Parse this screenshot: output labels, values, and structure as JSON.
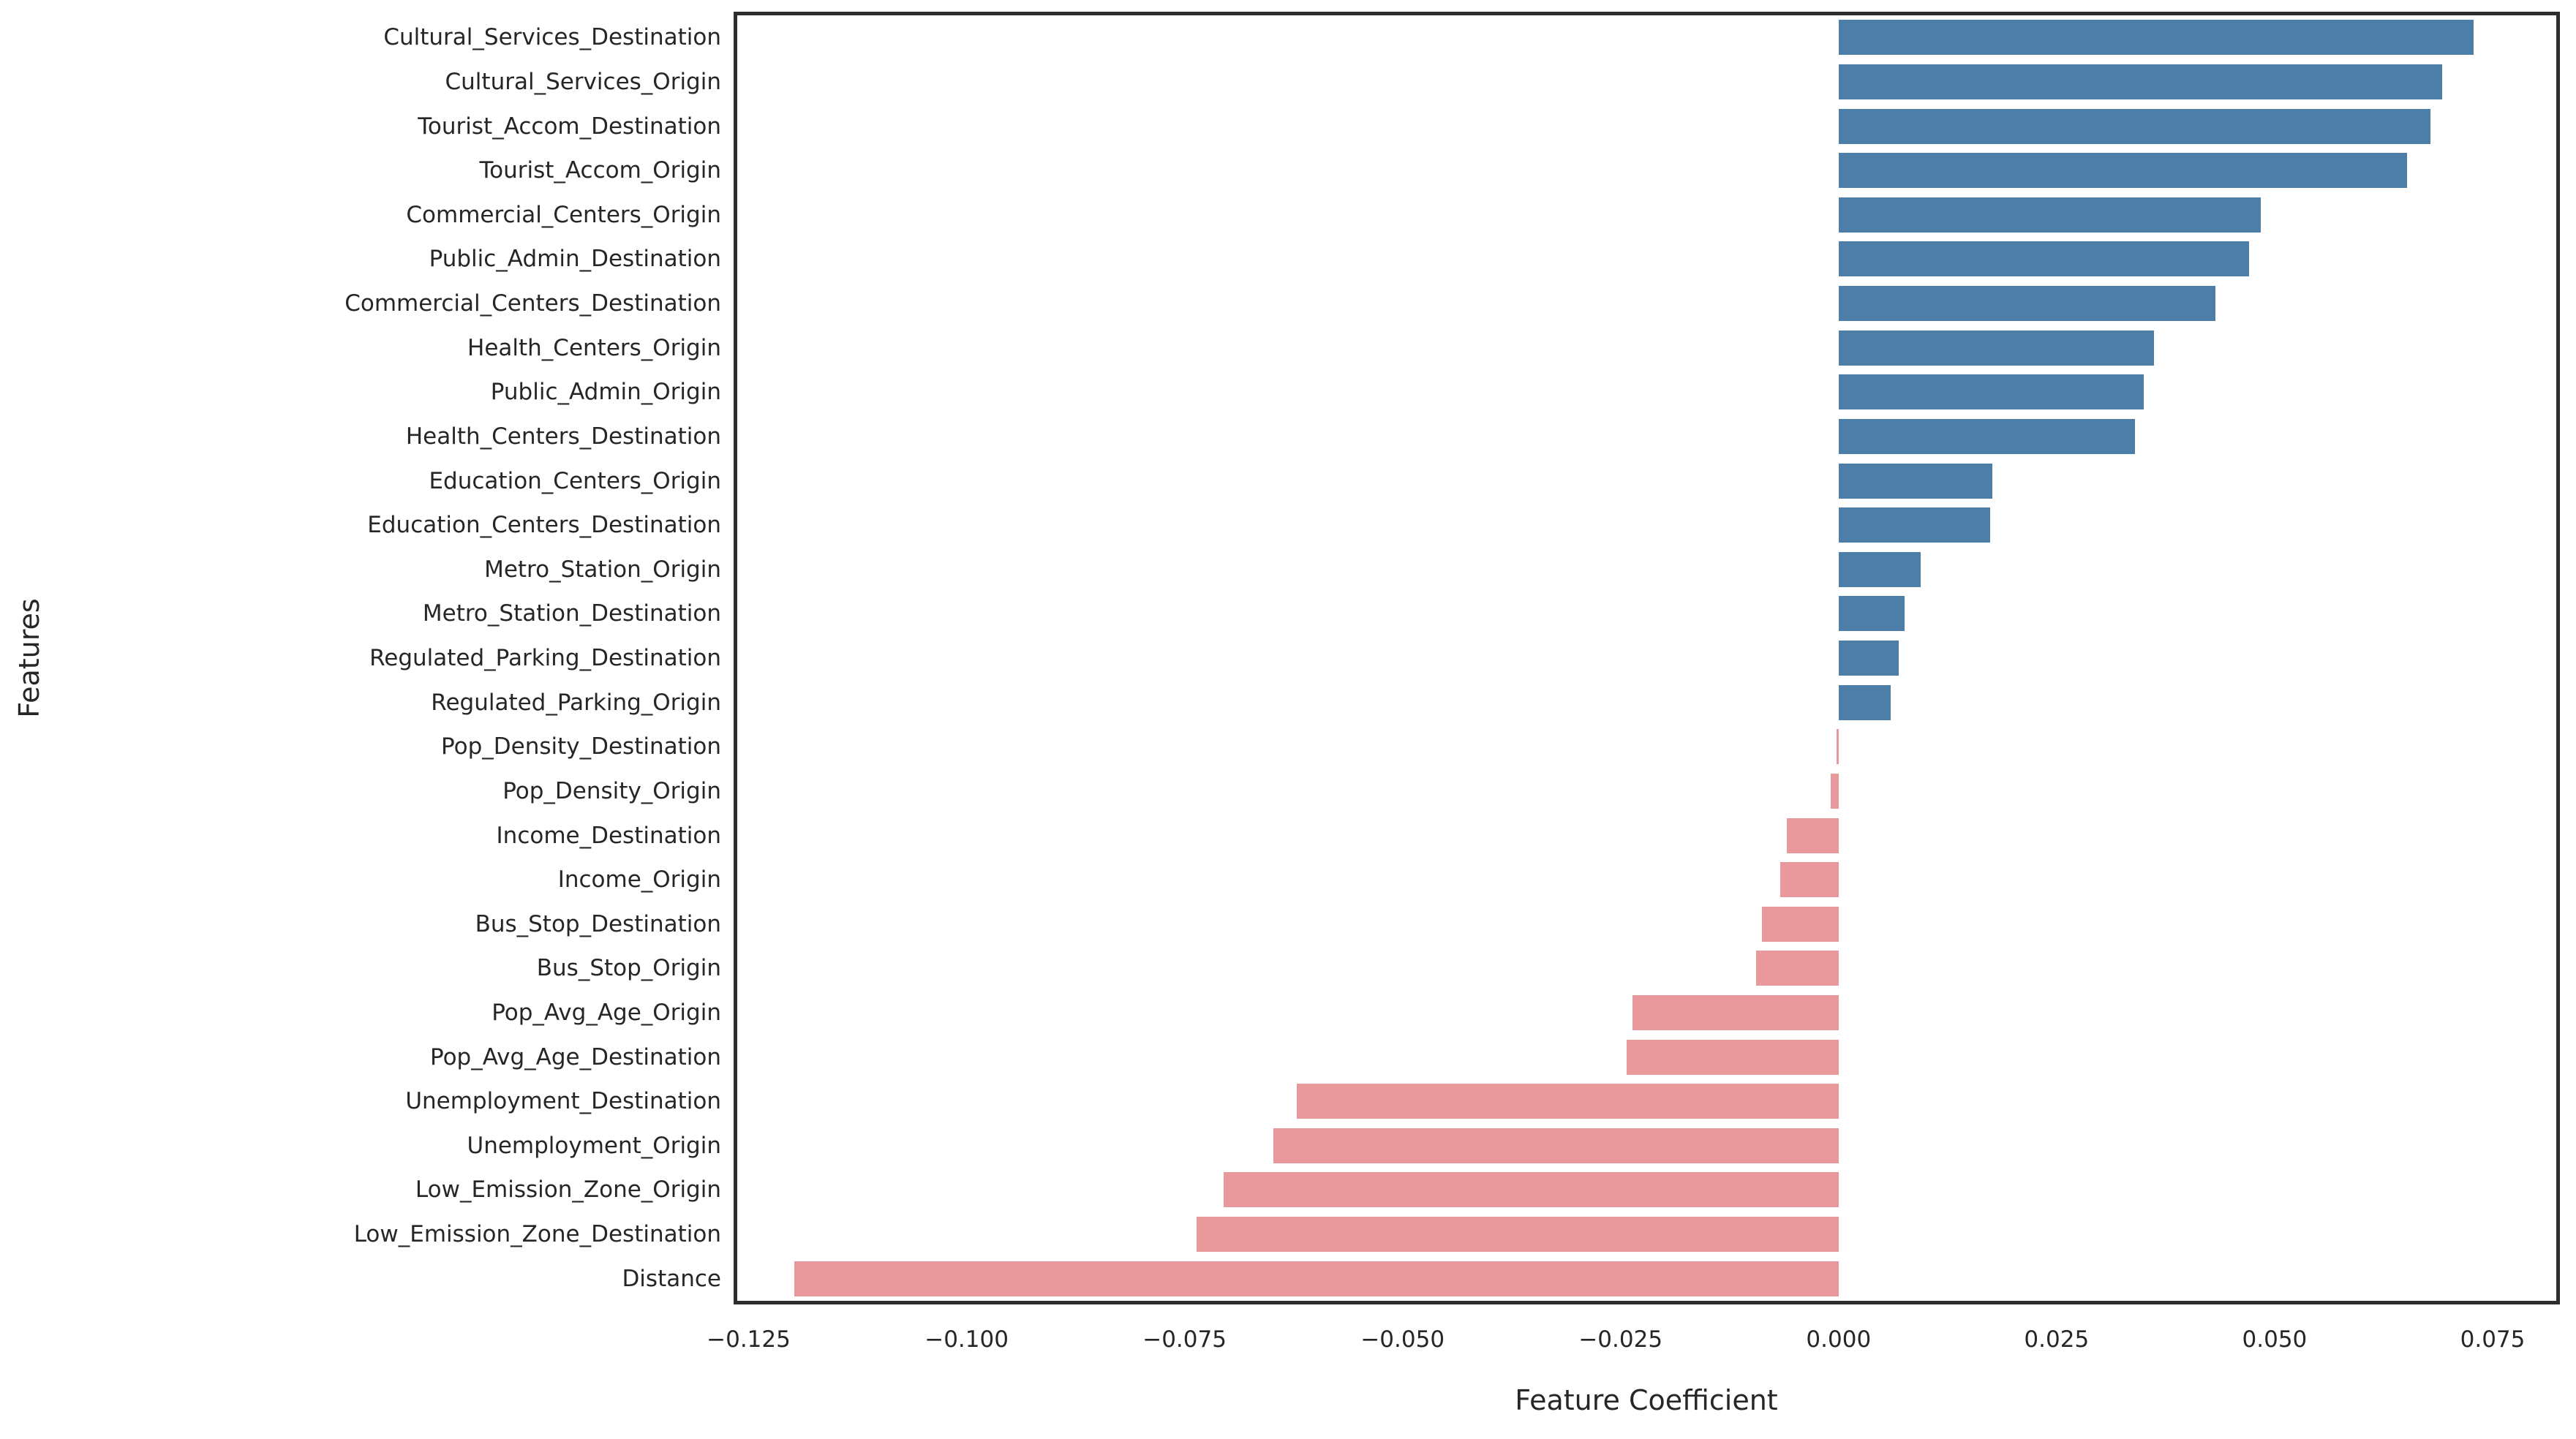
{
  "chart_data": {
    "type": "bar",
    "orientation": "horizontal",
    "title": "",
    "xlabel": "Feature Coefficient",
    "ylabel": "Features",
    "categories": [
      "Cultural_Services_Destination",
      "Cultural_Services_Origin",
      "Tourist_Accom_Destination",
      "Tourist_Accom_Origin",
      "Commercial_Centers_Origin",
      "Public_Admin_Destination",
      "Commercial_Centers_Destination",
      "Health_Centers_Origin",
      "Public_Admin_Origin",
      "Health_Centers_Destination",
      "Education_Centers_Origin",
      "Education_Centers_Destination",
      "Metro_Station_Origin",
      "Metro_Station_Destination",
      "Regulated_Parking_Destination",
      "Regulated_Parking_Origin",
      "Pop_Density_Destination",
      "Pop_Density_Origin",
      "Income_Destination",
      "Income_Origin",
      "Bus_Stop_Destination",
      "Bus_Stop_Origin",
      "Pop_Avg_Age_Origin",
      "Pop_Avg_Age_Destination",
      "Unemployment_Destination",
      "Unemployment_Origin",
      "Low_Emission_Zone_Origin",
      "Low_Emission_Zone_Destination",
      "Distance"
    ],
    "values": [
      0.0728,
      0.0692,
      0.0679,
      0.0652,
      0.0484,
      0.0471,
      0.0432,
      0.0362,
      0.035,
      0.034,
      0.0176,
      0.0174,
      0.0094,
      0.0076,
      0.0069,
      0.006,
      -0.0002,
      -0.0009,
      -0.0059,
      -0.0067,
      -0.0088,
      -0.0095,
      -0.0236,
      -0.0243,
      -0.0621,
      -0.0648,
      -0.0705,
      -0.0736,
      -0.1198
    ],
    "xticks": [
      -0.125,
      -0.1,
      -0.075,
      -0.05,
      -0.025,
      0.0,
      0.025,
      0.05,
      0.075
    ],
    "xtick_labels": [
      "−0.125",
      "−0.100",
      "−0.075",
      "−0.050",
      "−0.025",
      "0.000",
      "0.025",
      "0.050",
      "0.075"
    ],
    "xlim": [
      -0.1263,
      0.0823
    ],
    "grid": false,
    "legend": null,
    "positive_color": "#4d7ea8",
    "negative_color": "#e9999b",
    "axis_color": "#2e2e2e",
    "text_color": "#262626"
  }
}
